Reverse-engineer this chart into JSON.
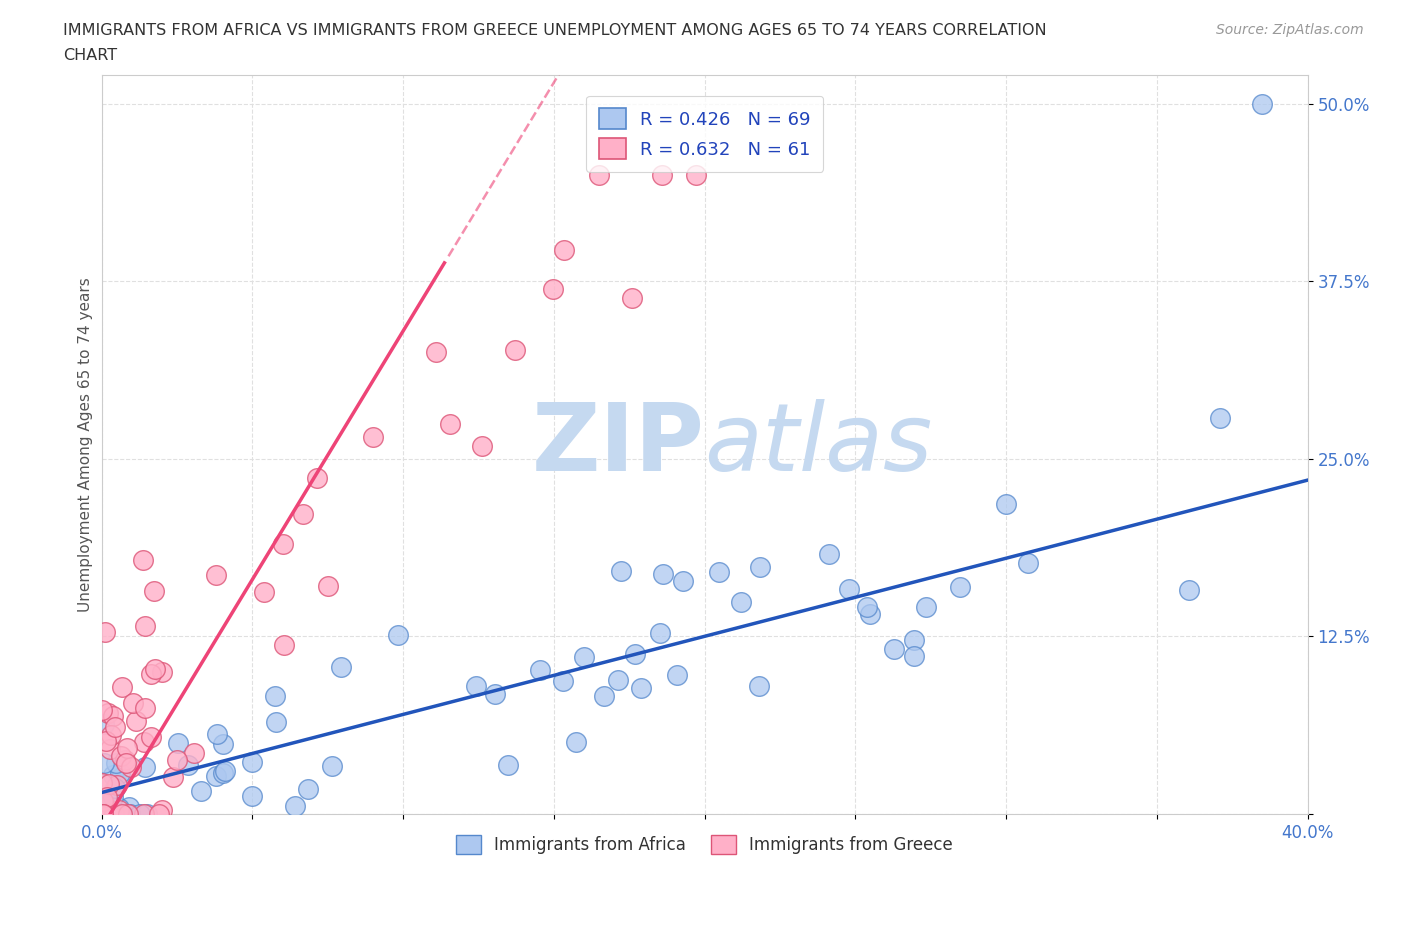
{
  "title_line1": "IMMIGRANTS FROM AFRICA VS IMMIGRANTS FROM GREECE UNEMPLOYMENT AMONG AGES 65 TO 74 YEARS CORRELATION",
  "title_line2": "CHART",
  "source": "Source: ZipAtlas.com",
  "ylabel": "Unemployment Among Ages 65 to 74 years",
  "xlim": [
    0.0,
    0.4
  ],
  "ylim": [
    0.0,
    0.52
  ],
  "ytick_positions": [
    0.0,
    0.125,
    0.25,
    0.375,
    0.5
  ],
  "yticklabels_right": [
    "",
    "12.5%",
    "25.0%",
    "37.5%",
    "50.0%"
  ],
  "africa_color": "#adc8f0",
  "africa_edge": "#5588cc",
  "greece_color": "#ffb0c8",
  "greece_edge": "#dd5577",
  "africa_R": 0.426,
  "africa_N": 69,
  "greece_R": 0.632,
  "greece_N": 61,
  "africa_line_color": "#2255bb",
  "greece_line_color": "#ee4477",
  "watermark_zip": "ZIP",
  "watermark_atlas": "atlas",
  "watermark_color": "#c5d9f0",
  "background_color": "#ffffff",
  "grid_color": "#e0e0e0"
}
